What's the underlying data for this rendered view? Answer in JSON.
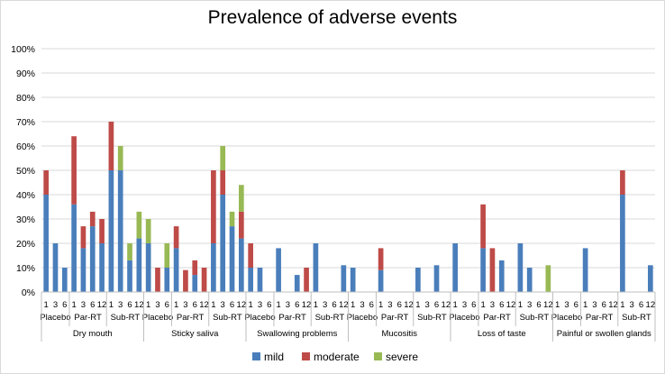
{
  "chart_data": {
    "type": "bar",
    "stacked": true,
    "title": "Prevalence of adverse events",
    "xlabel": "",
    "ylabel": "",
    "ylim": [
      0,
      100
    ],
    "ytick_format": "percent",
    "yticks": [
      "0%",
      "10%",
      "20%",
      "30%",
      "40%",
      "50%",
      "60%",
      "70%",
      "80%",
      "90%",
      "100%"
    ],
    "grid": true,
    "legend_position": "bottom",
    "groups": [
      {
        "name": "Dry mouth",
        "subgroups": [
          {
            "name": "Placebo",
            "categories": [
              "1",
              "3",
              "6"
            ]
          },
          {
            "name": "Par-RT",
            "categories": [
              "1",
              "3",
              "6",
              "12"
            ]
          },
          {
            "name": "Sub-RT",
            "categories": [
              "1",
              "3",
              "6",
              "12"
            ]
          }
        ]
      },
      {
        "name": "Sticky saliva",
        "subgroups": [
          {
            "name": "Placebo",
            "categories": [
              "1",
              "3",
              "6"
            ]
          },
          {
            "name": "Par-RT",
            "categories": [
              "1",
              "3",
              "6",
              "12"
            ]
          },
          {
            "name": "Sub-RT",
            "categories": [
              "1",
              "3",
              "6",
              "12"
            ]
          }
        ]
      },
      {
        "name": "Swallowing problems",
        "subgroups": [
          {
            "name": "Placebo",
            "categories": [
              "1",
              "3",
              "6"
            ]
          },
          {
            "name": "Par-RT",
            "categories": [
              "1",
              "3",
              "6",
              "12"
            ]
          },
          {
            "name": "Sub-RT",
            "categories": [
              "1",
              "3",
              "6",
              "12"
            ]
          }
        ]
      },
      {
        "name": "Mucositis",
        "subgroups": [
          {
            "name": "Placebo",
            "categories": [
              "1",
              "3",
              "6"
            ]
          },
          {
            "name": "Par-RT",
            "categories": [
              "1",
              "3",
              "6",
              "12"
            ]
          },
          {
            "name": "Sub-RT",
            "categories": [
              "1",
              "3",
              "6",
              "12"
            ]
          }
        ]
      },
      {
        "name": "Loss of taste",
        "subgroups": [
          {
            "name": "Placebo",
            "categories": [
              "1",
              "3",
              "6"
            ]
          },
          {
            "name": "Par-RT",
            "categories": [
              "1",
              "3",
              "6",
              "12"
            ]
          },
          {
            "name": "Sub-RT",
            "categories": [
              "1",
              "3",
              "6",
              "12"
            ]
          }
        ]
      },
      {
        "name": "Painful or swollen glands",
        "subgroups": [
          {
            "name": "Placebo",
            "categories": [
              "1",
              "3",
              "6"
            ]
          },
          {
            "name": "Par-RT",
            "categories": [
              "1",
              "3",
              "6",
              "12"
            ]
          },
          {
            "name": "Sub-RT",
            "categories": [
              "1",
              "3",
              "6",
              "12"
            ]
          }
        ]
      }
    ],
    "series": [
      {
        "name": "mild",
        "color": "#4a7ebb",
        "values": [
          40,
          20,
          10,
          36,
          18,
          27,
          20,
          50,
          50,
          13,
          22,
          20,
          0,
          10,
          18,
          0,
          7,
          0,
          20,
          40,
          27,
          22,
          10,
          10,
          0,
          18,
          0,
          7,
          0,
          20,
          0,
          0,
          11,
          10,
          0,
          0,
          9,
          0,
          0,
          0,
          10,
          0,
          11,
          0,
          20,
          0,
          0,
          18,
          0,
          13,
          0,
          20,
          10,
          0,
          0,
          0,
          0,
          0,
          18,
          0,
          0,
          0,
          40,
          0,
          0,
          11
        ]
      },
      {
        "name": "moderate",
        "color": "#be4b48",
        "values": [
          10,
          0,
          0,
          28,
          9,
          6,
          10,
          20,
          0,
          0,
          0,
          0,
          10,
          0,
          9,
          9,
          6,
          10,
          30,
          10,
          0,
          11,
          10,
          0,
          0,
          0,
          0,
          0,
          10,
          0,
          0,
          0,
          0,
          0,
          0,
          0,
          9,
          0,
          0,
          0,
          0,
          0,
          0,
          0,
          0,
          0,
          0,
          18,
          18,
          0,
          0,
          0,
          0,
          0,
          0,
          0,
          0,
          0,
          0,
          0,
          0,
          0,
          10,
          0,
          0,
          0
        ]
      },
      {
        "name": "severe",
        "color": "#98b954",
        "values": [
          0,
          0,
          0,
          0,
          0,
          0,
          0,
          0,
          10,
          7,
          11,
          10,
          0,
          10,
          0,
          0,
          0,
          0,
          0,
          10,
          6,
          11,
          0,
          0,
          0,
          0,
          0,
          0,
          0,
          0,
          0,
          0,
          0,
          0,
          0,
          0,
          0,
          0,
          0,
          0,
          0,
          0,
          0,
          0,
          0,
          0,
          0,
          0,
          0,
          0,
          0,
          0,
          0,
          0,
          11,
          0,
          0,
          0,
          0,
          0,
          0,
          0,
          0,
          0,
          0,
          0
        ]
      }
    ]
  }
}
